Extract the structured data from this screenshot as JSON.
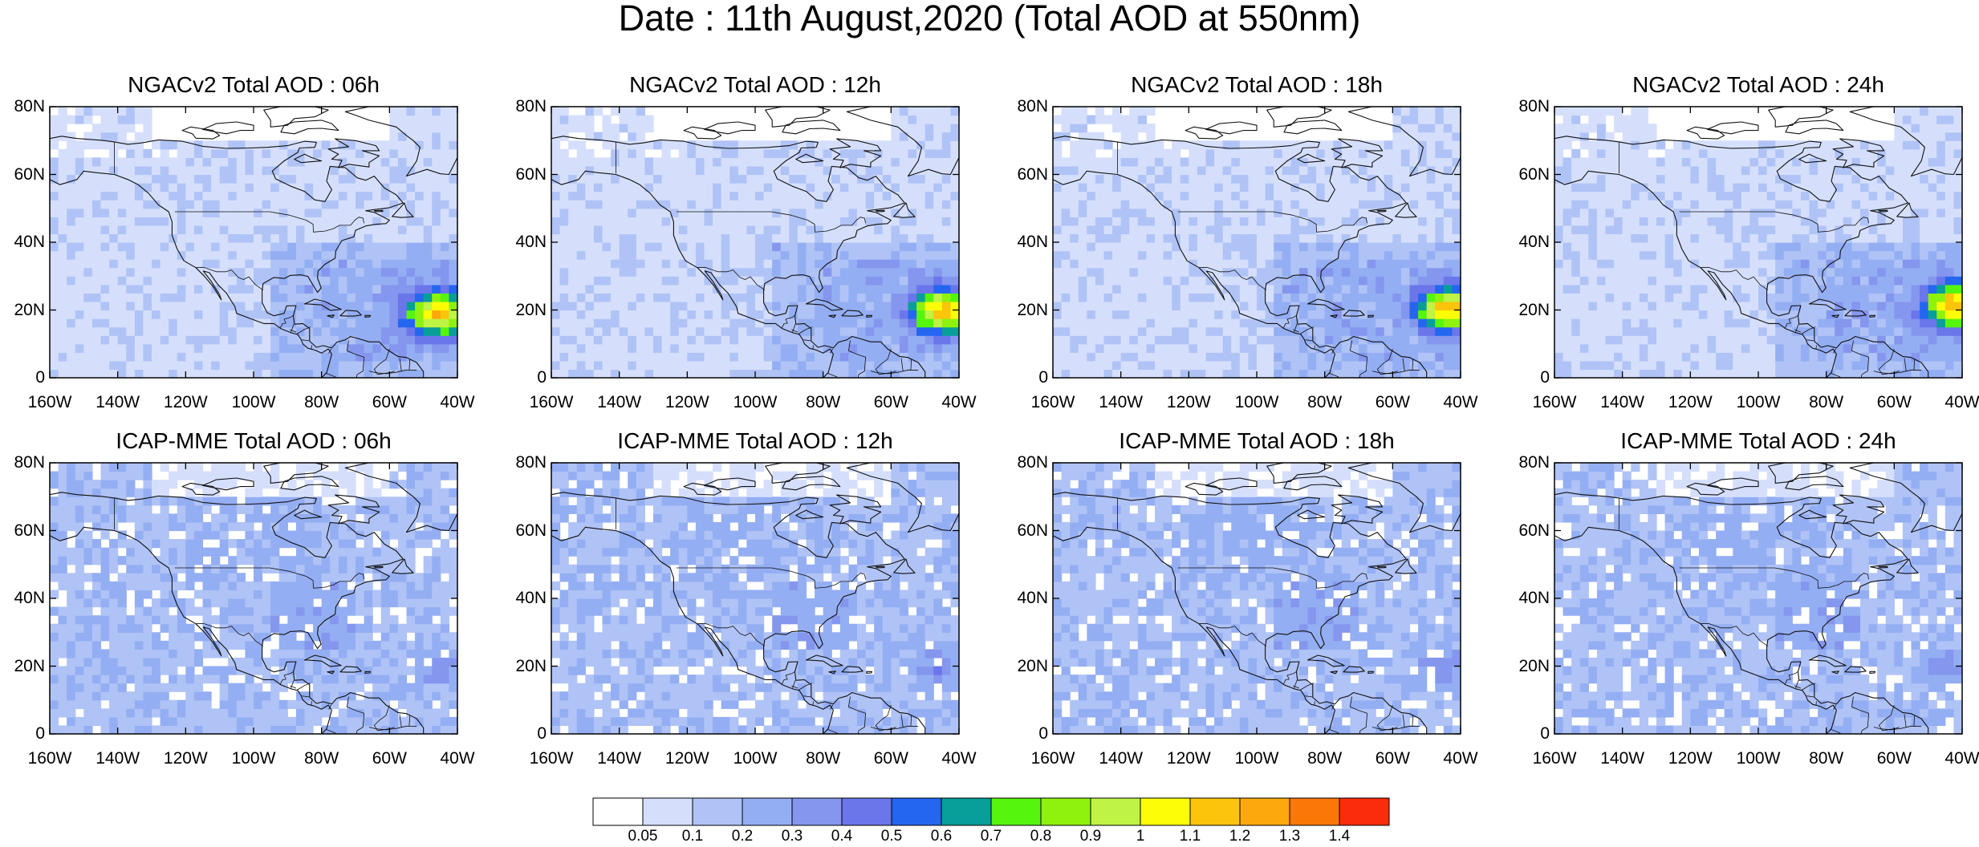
{
  "figure": {
    "title": "Date : 11th August,2020 (Total AOD at 550nm)"
  },
  "panels": [
    {
      "title": "NGACv2 Total AOD : 06h",
      "model": "NGACv2",
      "hour": "06h"
    },
    {
      "title": "NGACv2 Total AOD : 12h",
      "model": "NGACv2",
      "hour": "12h"
    },
    {
      "title": "NGACv2 Total AOD : 18h",
      "model": "NGACv2",
      "hour": "18h"
    },
    {
      "title": "NGACv2 Total AOD : 24h",
      "model": "NGACv2",
      "hour": "24h"
    },
    {
      "title": "ICAP-MME Total AOD : 06h",
      "model": "ICAP-MME",
      "hour": "06h"
    },
    {
      "title": "ICAP-MME Total AOD : 12h",
      "model": "ICAP-MME",
      "hour": "12h"
    },
    {
      "title": "ICAP-MME Total AOD : 18h",
      "model": "ICAP-MME",
      "hour": "18h"
    },
    {
      "title": "ICAP-MME Total AOD : 24h",
      "model": "ICAP-MME",
      "hour": "24h"
    }
  ],
  "axes": {
    "lat_ticks": [
      "80N",
      "60N",
      "40N",
      "20N",
      "0"
    ],
    "lon_ticks": [
      "160W",
      "140W",
      "120W",
      "100W",
      "80W",
      "60W",
      "40W"
    ],
    "lat_range": [
      0,
      80
    ],
    "lon_range": [
      -160,
      -40
    ]
  },
  "colorbar": {
    "labels": [
      "0.05",
      "0.1",
      "0.2",
      "0.3",
      "0.4",
      "0.5",
      "0.6",
      "0.7",
      "0.8",
      "0.9",
      "1",
      "1.1",
      "1.2",
      "1.3",
      "1.4"
    ],
    "colors": [
      "#ffffff",
      "#d5dffc",
      "#b0c3f6",
      "#94aef3",
      "#8596ee",
      "#6a76ea",
      "#2466f0",
      "#089e9a",
      "#56f50e",
      "#8ef20f",
      "#bff345",
      "#fdfd08",
      "#fcc40a",
      "#fda80c",
      "#fb7808",
      "#fb2c0c"
    ]
  },
  "regions_shown": [
    "North America",
    "Caribbean",
    "Central America",
    "Greenland (partial)",
    "Atlantic Ocean (dust plume near 20N 45W in NGACv2)"
  ]
}
